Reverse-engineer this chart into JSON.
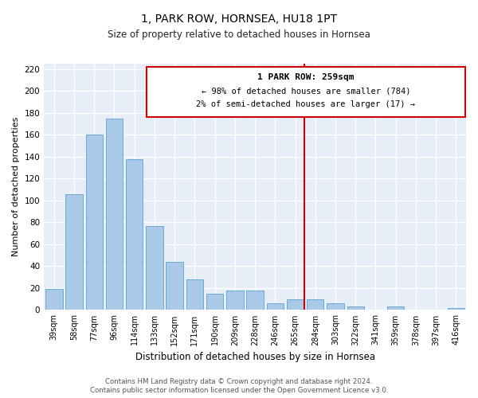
{
  "title": "1, PARK ROW, HORNSEA, HU18 1PT",
  "subtitle": "Size of property relative to detached houses in Hornsea",
  "xlabel": "Distribution of detached houses by size in Hornsea",
  "ylabel": "Number of detached properties",
  "bar_labels": [
    "39sqm",
    "58sqm",
    "77sqm",
    "96sqm",
    "114sqm",
    "133sqm",
    "152sqm",
    "171sqm",
    "190sqm",
    "209sqm",
    "228sqm",
    "246sqm",
    "265sqm",
    "284sqm",
    "303sqm",
    "322sqm",
    "341sqm",
    "359sqm",
    "378sqm",
    "397sqm",
    "416sqm"
  ],
  "bar_values": [
    19,
    106,
    160,
    175,
    138,
    77,
    44,
    28,
    15,
    18,
    18,
    6,
    10,
    10,
    6,
    3,
    0,
    3,
    0,
    0,
    2
  ],
  "bar_color": "#aac9e8",
  "bar_edge_color": "#6aaad4",
  "vline_color": "#cc0000",
  "annotation_title": "1 PARK ROW: 259sqm",
  "annotation_line1": "← 98% of detached houses are smaller (784)",
  "annotation_line2": "2% of semi-detached houses are larger (17) →",
  "annotation_box_edge": "#cc0000",
  "bg_color": "#e8eef8",
  "ylim": [
    0,
    225
  ],
  "yticks": [
    0,
    20,
    40,
    60,
    80,
    100,
    120,
    140,
    160,
    180,
    200,
    220
  ],
  "footer1": "Contains HM Land Registry data © Crown copyright and database right 2024.",
  "footer2": "Contains public sector information licensed under the Open Government Licence v3.0."
}
